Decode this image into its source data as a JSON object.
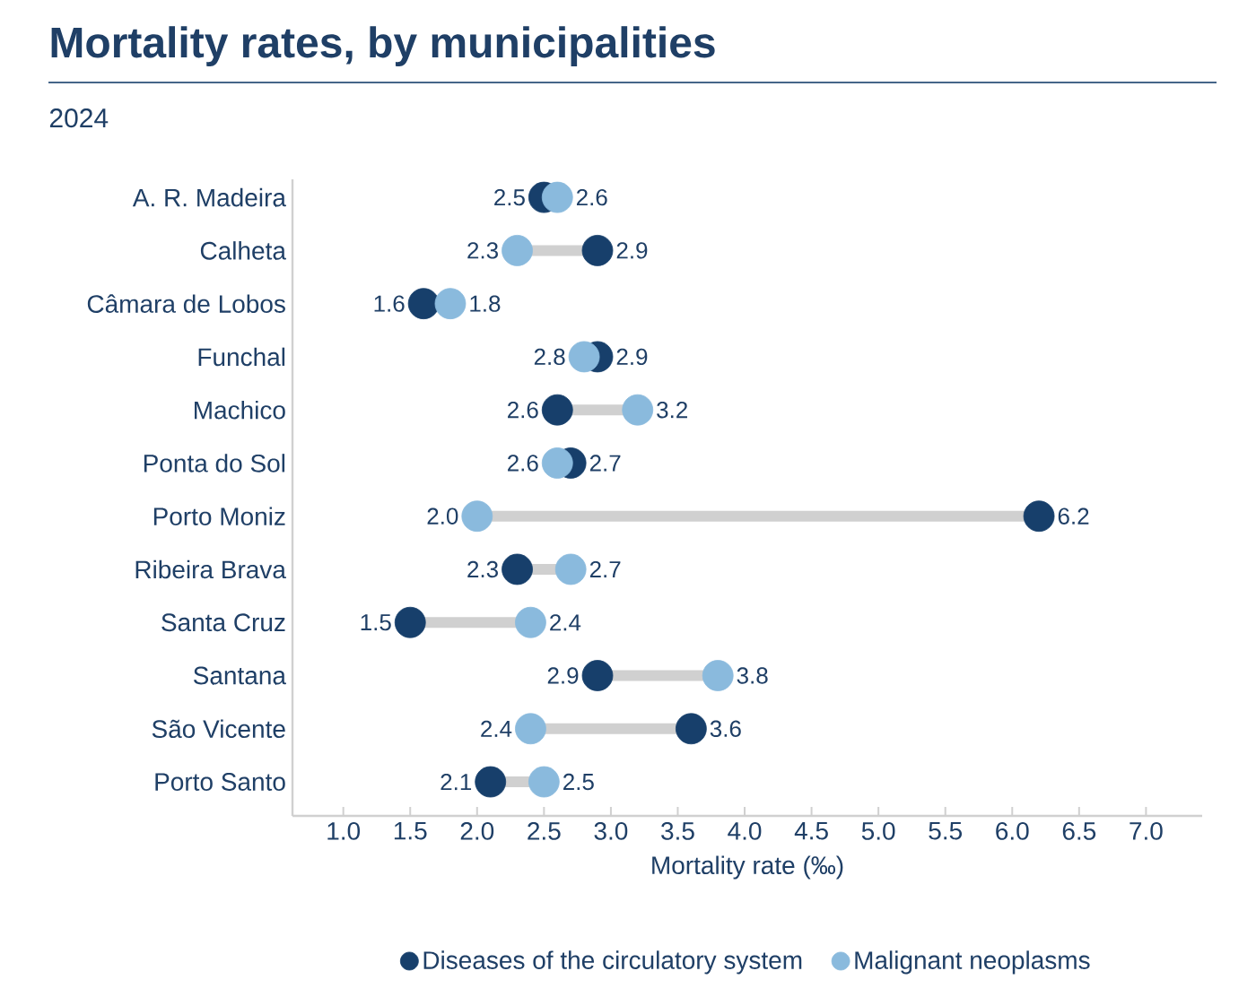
{
  "chart_data": {
    "type": "scatter",
    "orientation": "horizontal",
    "title": "Mortality rates, by municipalities",
    "subtitle": "2024",
    "xlabel": "Mortality rate (‰)",
    "categories": [
      "A. R.  Madeira",
      "Calheta",
      "Câmara de Lobos",
      "Funchal",
      "Machico",
      "Ponta do Sol",
      "Porto Moniz",
      "Ribeira Brava",
      "Santa Cruz",
      "Santana",
      "São Vicente",
      "Porto Santo"
    ],
    "series": [
      {
        "name": "Diseases of the circulatory system",
        "color": "#173f6b",
        "values": [
          2.5,
          2.9,
          1.6,
          2.9,
          2.6,
          2.7,
          6.2,
          2.3,
          1.5,
          2.9,
          3.6,
          2.1
        ],
        "value_labels": [
          "2.5",
          "2.9",
          "1.6",
          "2.9",
          "2.6",
          "2.7",
          "6.2",
          "2.3",
          "1.5",
          "2.9",
          "3.6",
          "2.1"
        ]
      },
      {
        "name": "Malignant neoplasms",
        "color": "#8abadd",
        "values": [
          2.6,
          2.3,
          1.8,
          2.8,
          3.2,
          2.6,
          2,
          2.7,
          2.4,
          3.8,
          2.4,
          2.5
        ],
        "value_labels": [
          "2.6",
          "2.3",
          "1.8",
          "2.8",
          "3.2",
          "2.6",
          "2.0",
          "2.7",
          "2.4",
          "3.8",
          "2.4",
          "2.5"
        ]
      }
    ],
    "xlim": [
      0.62,
      7.42
    ],
    "xticks": [
      {
        "value": 1,
        "label": "1.0"
      },
      1.5,
      {
        "value": 2,
        "label": "2.0"
      },
      2.5,
      {
        "value": 3,
        "label": "3.0"
      },
      3.5,
      {
        "value": 4,
        "label": "4.0"
      },
      4.5,
      {
        "value": 5,
        "label": "5.0"
      },
      5.5,
      {
        "value": 6,
        "label": "6.0"
      },
      6.5,
      {
        "value": 7,
        "label": "7.0"
      }
    ],
    "marker": "circle",
    "legend": "bottom",
    "grid": false
  }
}
